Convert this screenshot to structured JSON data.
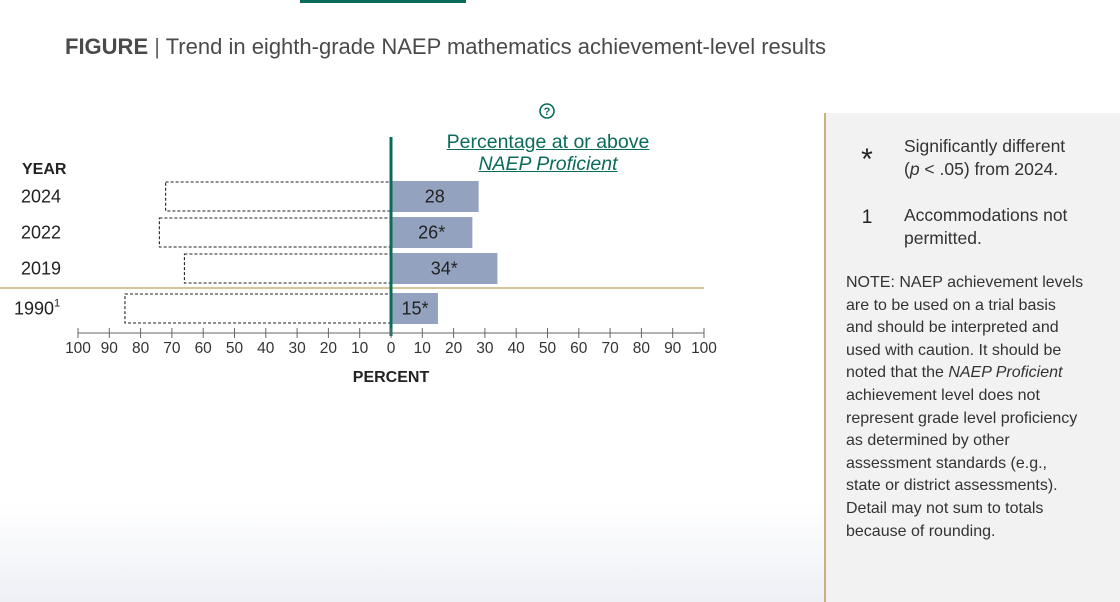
{
  "figure": {
    "label": "FIGURE",
    "separator": "|",
    "title": "Trend in eighth-grade NAEP mathematics achievement-level results"
  },
  "chart_data": {
    "type": "bar",
    "orientation": "horizontal",
    "measure_line1": "Percentage at or above",
    "measure_line2": "NAEP Proficient",
    "year_header": "YEAR",
    "xlabel": "PERCENT",
    "xlim": [
      -100,
      100
    ],
    "tick_labels": [
      "100",
      "90",
      "80",
      "70",
      "60",
      "50",
      "40",
      "30",
      "20",
      "10",
      "0",
      "10",
      "20",
      "30",
      "40",
      "50",
      "60",
      "70",
      "80",
      "90",
      "100"
    ],
    "categories": [
      "2024",
      "2022",
      "2019",
      "1990"
    ],
    "category_superscripts": [
      "",
      "",
      "",
      "1"
    ],
    "values": [
      28,
      26,
      34,
      15
    ],
    "value_labels": [
      "28",
      "26*",
      "34*",
      "15*"
    ],
    "below_proficient": [
      72,
      74,
      66,
      85
    ],
    "colors": {
      "bar": "#93a3bf",
      "zero_line": "#0b6b5a",
      "divider": "#c9b27b"
    }
  },
  "legend": {
    "star_symbol": "*",
    "star_text_line1": "Significantly different",
    "star_text_p": "p",
    "star_text_line2_rest": " < .05) from 2024.",
    "one_symbol": "1",
    "one_text": "Accommodations not permitted."
  },
  "note": {
    "part1": "NOTE: NAEP achievement levels are to be used on a trial basis and should be interpreted and used with caution. It should be noted that the ",
    "italic": "NAEP Proficient",
    "part2": " achievement level does not represent grade level proficiency as determined by other assessment standards (e.g., state or district assessments). Detail may not sum to totals because of rounding."
  }
}
